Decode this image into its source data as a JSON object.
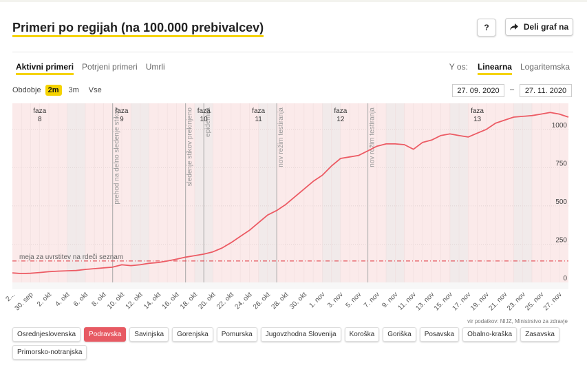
{
  "title": "Primeri po regijah (na 100.000 prebivalcev)",
  "buttons": {
    "help": "?",
    "share": "Deli graf na"
  },
  "tabs": [
    {
      "label": "Aktivni primeri",
      "active": true
    },
    {
      "label": "Potrjeni primeri",
      "active": false
    },
    {
      "label": "Umrli",
      "active": false
    }
  ],
  "y_axis_selector": {
    "label": "Y os:",
    "options": [
      {
        "label": "Linearna",
        "active": true
      },
      {
        "label": "Logaritemska",
        "active": false
      }
    ]
  },
  "period": {
    "label": "Obdobje",
    "options": [
      {
        "label": "2m",
        "active": true
      },
      {
        "label": "3m",
        "active": false
      },
      {
        "label": "Vse",
        "active": false
      }
    ]
  },
  "date_from": "27. 09. 2020",
  "date_to": "27. 11. 2020",
  "date_separator": "–",
  "source": "vir podatkov: NIJZ, Ministrstvo za zdravje",
  "regions": [
    {
      "label": "Osrednjeslovenska",
      "active": false
    },
    {
      "label": "Podravska",
      "active": true
    },
    {
      "label": "Savinjska",
      "active": false
    },
    {
      "label": "Gorenjska",
      "active": false
    },
    {
      "label": "Pomurska",
      "active": false
    },
    {
      "label": "Jugovzhodna Slovenija",
      "active": false
    },
    {
      "label": "Koroška",
      "active": false
    },
    {
      "label": "Goriška",
      "active": false
    },
    {
      "label": "Posavska",
      "active": false
    },
    {
      "label": "Obalno-kraška",
      "active": false
    },
    {
      "label": "Zasavska",
      "active": false
    },
    {
      "label": "Primorsko-notranjska",
      "active": false
    }
  ],
  "colors": {
    "line": "#ec5b64",
    "threshold": "#e0303a",
    "accent": "#f5d300",
    "phase_bg": "#fbeaea",
    "weekend": "#e9e9e9"
  },
  "chart_data": {
    "type": "line",
    "x_range": [
      "2020-09-27",
      "2020-11-27"
    ],
    "ylim": [
      0,
      1170
    ],
    "y_ticks": [
      0,
      250,
      500,
      750,
      1000
    ],
    "x_tick_labels": [
      "2...",
      "30. sep",
      "2. okt",
      "4. okt",
      "6. okt",
      "8. okt",
      "10. okt",
      "12. okt",
      "14. okt",
      "16. okt",
      "18. okt",
      "20. okt",
      "22. okt",
      "24. okt",
      "26. okt",
      "28. okt",
      "30. okt",
      "1. nov",
      "3. nov",
      "5. nov",
      "7. nov",
      "9. nov",
      "11. nov",
      "13. nov",
      "15. nov",
      "17. nov",
      "19. nov",
      "21. nov",
      "23. nov",
      "25. nov",
      "27. nov"
    ],
    "threshold": {
      "value": 140,
      "label": "meja za uvrstitev na rdeči seznam"
    },
    "phases": [
      {
        "label": "faza",
        "number": "8",
        "date": "2020-09-30"
      },
      {
        "label": "faza",
        "number": "9",
        "date": "2020-10-09"
      },
      {
        "label": "faza",
        "number": "10",
        "date": "2020-10-18"
      },
      {
        "label": "faza",
        "number": "11",
        "date": "2020-10-24"
      },
      {
        "label": "faza",
        "number": "12",
        "date": "2020-11-02"
      },
      {
        "label": "faza",
        "number": "13",
        "date": "2020-11-17"
      }
    ],
    "annotations": [
      {
        "label": "prehod na delno sledenje stikov",
        "date": "2020-10-08"
      },
      {
        "label": "sledenje stikov prekinjeno",
        "date": "2020-10-16"
      },
      {
        "label": "epidemija",
        "date": "2020-10-18"
      },
      {
        "label": "nov režim testiranja",
        "date": "2020-10-26"
      },
      {
        "label": "nov režim testiranja",
        "date": "2020-11-05"
      }
    ],
    "series": [
      {
        "name": "Podravska",
        "x": [
          "2020-09-27",
          "2020-09-28",
          "2020-09-29",
          "2020-09-30",
          "2020-10-01",
          "2020-10-02",
          "2020-10-03",
          "2020-10-04",
          "2020-10-05",
          "2020-10-06",
          "2020-10-07",
          "2020-10-08",
          "2020-10-09",
          "2020-10-10",
          "2020-10-11",
          "2020-10-12",
          "2020-10-13",
          "2020-10-14",
          "2020-10-15",
          "2020-10-16",
          "2020-10-17",
          "2020-10-18",
          "2020-10-19",
          "2020-10-20",
          "2020-10-21",
          "2020-10-22",
          "2020-10-23",
          "2020-10-24",
          "2020-10-25",
          "2020-10-26",
          "2020-10-27",
          "2020-10-28",
          "2020-10-29",
          "2020-10-30",
          "2020-10-31",
          "2020-11-01",
          "2020-11-02",
          "2020-11-03",
          "2020-11-04",
          "2020-11-05",
          "2020-11-06",
          "2020-11-07",
          "2020-11-08",
          "2020-11-09",
          "2020-11-10",
          "2020-11-11",
          "2020-11-12",
          "2020-11-13",
          "2020-11-14",
          "2020-11-15",
          "2020-11-16",
          "2020-11-17",
          "2020-11-18",
          "2020-11-19",
          "2020-11-20",
          "2020-11-21",
          "2020-11-22",
          "2020-11-23",
          "2020-11-24",
          "2020-11-25",
          "2020-11-26",
          "2020-11-27"
        ],
        "values": [
          62,
          58,
          60,
          65,
          70,
          74,
          76,
          78,
          85,
          90,
          95,
          100,
          115,
          110,
          115,
          125,
          130,
          140,
          152,
          165,
          175,
          185,
          200,
          225,
          260,
          300,
          340,
          390,
          440,
          470,
          510,
          560,
          610,
          660,
          700,
          760,
          810,
          820,
          830,
          860,
          890,
          905,
          905,
          900,
          870,
          915,
          930,
          960,
          970,
          960,
          950,
          975,
          1000,
          1040,
          1060,
          1080,
          1085,
          1090,
          1100,
          1110,
          1100,
          1080
        ]
      }
    ]
  }
}
